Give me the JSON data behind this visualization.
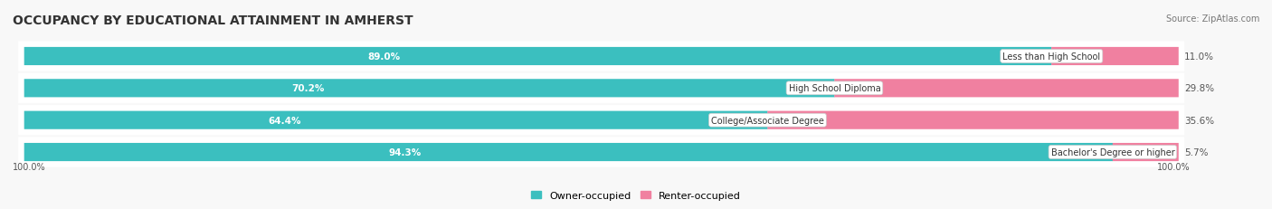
{
  "title": "OCCUPANCY BY EDUCATIONAL ATTAINMENT IN AMHERST",
  "source": "Source: ZipAtlas.com",
  "categories": [
    "Less than High School",
    "High School Diploma",
    "College/Associate Degree",
    "Bachelor's Degree or higher"
  ],
  "owner_pct": [
    89.0,
    70.2,
    64.4,
    94.3
  ],
  "renter_pct": [
    11.0,
    29.8,
    35.6,
    5.7
  ],
  "owner_color": "#3bbfbf",
  "renter_color": "#f080a0",
  "owner_color_light": "#d0f0f0",
  "renter_color_light": "#fadadd",
  "bar_bg_color": "#f0f0f0",
  "row_bg_colors": [
    "#e8e8e8",
    "#f5f5f5"
  ],
  "title_fontsize": 10,
  "label_fontsize": 7.5,
  "tick_fontsize": 7,
  "legend_fontsize": 8,
  "source_fontsize": 7
}
